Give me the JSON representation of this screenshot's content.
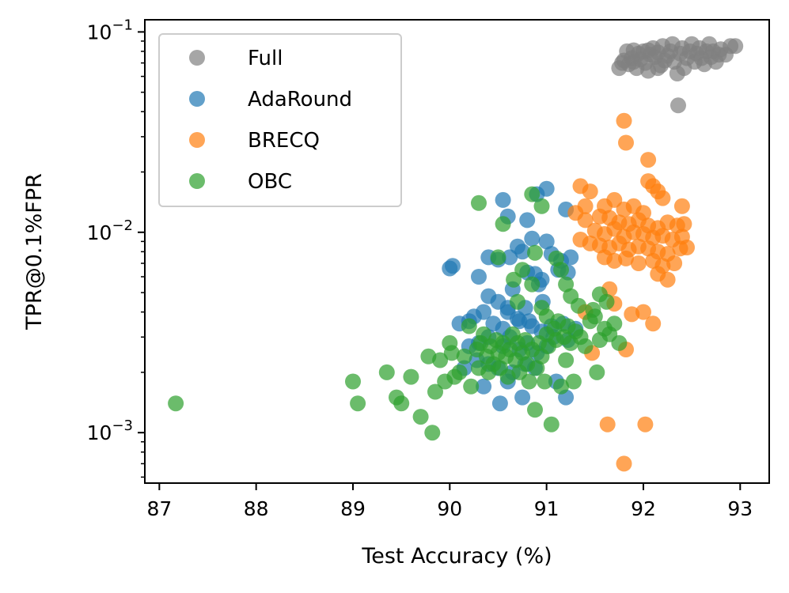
{
  "chart_data": {
    "type": "scatter",
    "title": "",
    "xlabel": "Test Accuracy (%)",
    "ylabel": "TPR@0.1%FPR",
    "xlim": [
      86.85,
      93.3
    ],
    "ylim": [
      0.00056,
      0.115
    ],
    "yscale": "log",
    "grid": false,
    "legend_position": "top-left",
    "x_ticks": [
      87,
      88,
      89,
      90,
      91,
      92,
      93
    ],
    "x_tick_labels": [
      "87",
      "88",
      "89",
      "90",
      "91",
      "92",
      "93"
    ],
    "y_ticks": [
      0.001,
      0.01,
      0.1
    ],
    "y_tick_labels": [
      {
        "base": "10",
        "exp": "−3"
      },
      {
        "base": "10",
        "exp": "−2"
      },
      {
        "base": "10",
        "exp": "−1"
      }
    ],
    "series": [
      {
        "name": "Full",
        "color": "#808080",
        "points": [
          [
            91.75,
            0.066
          ],
          [
            91.78,
            0.07
          ],
          [
            91.8,
            0.072
          ],
          [
            91.83,
            0.08
          ],
          [
            91.85,
            0.069
          ],
          [
            91.88,
            0.074
          ],
          [
            91.9,
            0.071
          ],
          [
            91.93,
            0.066
          ],
          [
            91.95,
            0.078
          ],
          [
            91.97,
            0.073
          ],
          [
            92.0,
            0.08
          ],
          [
            92.02,
            0.07
          ],
          [
            92.05,
            0.064
          ],
          [
            92.07,
            0.077
          ],
          [
            92.1,
            0.083
          ],
          [
            92.12,
            0.075
          ],
          [
            92.15,
            0.079
          ],
          [
            92.18,
            0.068
          ],
          [
            92.2,
            0.085
          ],
          [
            92.22,
            0.072
          ],
          [
            92.25,
            0.076
          ],
          [
            92.28,
            0.08
          ],
          [
            92.3,
            0.087
          ],
          [
            92.32,
            0.071
          ],
          [
            92.35,
            0.062
          ],
          [
            92.38,
            0.078
          ],
          [
            92.4,
            0.083
          ],
          [
            92.42,
            0.066
          ],
          [
            92.45,
            0.074
          ],
          [
            92.48,
            0.08
          ],
          [
            92.5,
            0.087
          ],
          [
            92.53,
            0.071
          ],
          [
            92.55,
            0.078
          ],
          [
            92.58,
            0.083
          ],
          [
            92.6,
            0.074
          ],
          [
            92.63,
            0.069
          ],
          [
            92.65,
            0.08
          ],
          [
            92.68,
            0.087
          ],
          [
            92.7,
            0.075
          ],
          [
            92.72,
            0.08
          ],
          [
            92.75,
            0.071
          ],
          [
            92.78,
            0.077
          ],
          [
            92.8,
            0.082
          ],
          [
            92.85,
            0.077
          ],
          [
            92.9,
            0.085
          ],
          [
            92.95,
            0.085
          ],
          [
            92.36,
            0.043
          ],
          [
            91.9,
            0.081
          ],
          [
            92.05,
            0.081
          ],
          [
            92.15,
            0.066
          ]
        ]
      },
      {
        "name": "AdaRound",
        "color": "#1f77b4",
        "points": [
          [
            91.0,
            0.0165
          ],
          [
            90.55,
            0.0145
          ],
          [
            90.6,
            0.012
          ],
          [
            90.9,
            0.0155
          ],
          [
            90.8,
            0.0115
          ],
          [
            91.2,
            0.013
          ],
          [
            90.0,
            0.0066
          ],
          [
            90.03,
            0.0068
          ],
          [
            90.4,
            0.0075
          ],
          [
            90.5,
            0.0073
          ],
          [
            90.7,
            0.0085
          ],
          [
            90.75,
            0.008
          ],
          [
            90.85,
            0.0093
          ],
          [
            91.0,
            0.009
          ],
          [
            91.05,
            0.0078
          ],
          [
            90.62,
            0.0075
          ],
          [
            90.8,
            0.0063
          ],
          [
            91.15,
            0.0072
          ],
          [
            91.25,
            0.0075
          ],
          [
            90.3,
            0.006
          ],
          [
            90.88,
            0.0062
          ],
          [
            90.95,
            0.0058
          ],
          [
            91.12,
            0.0065
          ],
          [
            91.22,
            0.0063
          ],
          [
            90.65,
            0.0052
          ],
          [
            90.92,
            0.0055
          ],
          [
            90.4,
            0.0048
          ],
          [
            90.5,
            0.0045
          ],
          [
            90.78,
            0.0042
          ],
          [
            90.6,
            0.004
          ],
          [
            90.35,
            0.004
          ],
          [
            90.25,
            0.0038
          ],
          [
            90.2,
            0.0036
          ],
          [
            90.1,
            0.0035
          ],
          [
            90.45,
            0.0035
          ],
          [
            90.55,
            0.0033
          ],
          [
            90.7,
            0.0037
          ],
          [
            90.82,
            0.0036
          ],
          [
            91.05,
            0.0034
          ],
          [
            91.17,
            0.0035
          ],
          [
            91.3,
            0.0033
          ],
          [
            90.4,
            0.003
          ],
          [
            90.62,
            0.003
          ],
          [
            90.8,
            0.0028
          ],
          [
            90.95,
            0.0032
          ],
          [
            91.07,
            0.003
          ],
          [
            91.22,
            0.0029
          ],
          [
            90.3,
            0.0028
          ],
          [
            90.55,
            0.0027
          ],
          [
            90.72,
            0.0026
          ],
          [
            90.9,
            0.0025
          ],
          [
            91.0,
            0.0027
          ],
          [
            90.2,
            0.0027
          ],
          [
            90.28,
            0.0023
          ],
          [
            90.4,
            0.0022
          ],
          [
            90.5,
            0.0021
          ],
          [
            90.65,
            0.002
          ],
          [
            90.78,
            0.0022
          ],
          [
            90.88,
            0.0021
          ],
          [
            90.15,
            0.0021
          ],
          [
            90.35,
            0.0017
          ],
          [
            90.6,
            0.0018
          ],
          [
            90.75,
            0.0015
          ],
          [
            90.52,
            0.0014
          ],
          [
            91.2,
            0.0015
          ],
          [
            91.1,
            0.0018
          ],
          [
            90.96,
            0.0045
          ],
          [
            90.72,
            0.0036
          ],
          [
            90.6,
            0.0042
          ],
          [
            90.85,
            0.0034
          ]
        ]
      },
      {
        "name": "BRECQ",
        "color": "#ff7f0e",
        "points": [
          [
            91.8,
            0.036
          ],
          [
            91.82,
            0.028
          ],
          [
            92.05,
            0.023
          ],
          [
            92.05,
            0.018
          ],
          [
            92.1,
            0.017
          ],
          [
            92.15,
            0.016
          ],
          [
            91.35,
            0.017
          ],
          [
            91.45,
            0.016
          ],
          [
            91.6,
            0.0135
          ],
          [
            91.7,
            0.0145
          ],
          [
            91.8,
            0.013
          ],
          [
            91.9,
            0.0135
          ],
          [
            92.0,
            0.0125
          ],
          [
            92.2,
            0.0148
          ],
          [
            92.4,
            0.0135
          ],
          [
            91.4,
            0.0115
          ],
          [
            91.55,
            0.012
          ],
          [
            91.65,
            0.0118
          ],
          [
            91.75,
            0.0112
          ],
          [
            91.85,
            0.011
          ],
          [
            91.95,
            0.0115
          ],
          [
            92.05,
            0.0108
          ],
          [
            92.15,
            0.0105
          ],
          [
            92.25,
            0.0112
          ],
          [
            92.35,
            0.0108
          ],
          [
            92.42,
            0.011
          ],
          [
            91.5,
            0.0102
          ],
          [
            91.6,
            0.0098
          ],
          [
            91.7,
            0.0104
          ],
          [
            91.8,
            0.0095
          ],
          [
            91.9,
            0.01
          ],
          [
            92.0,
            0.0098
          ],
          [
            92.1,
            0.0094
          ],
          [
            92.2,
            0.0096
          ],
          [
            92.3,
            0.0092
          ],
          [
            92.4,
            0.0095
          ],
          [
            91.35,
            0.0092
          ],
          [
            91.45,
            0.0088
          ],
          [
            91.55,
            0.0086
          ],
          [
            91.65,
            0.0084
          ],
          [
            91.75,
            0.0088
          ],
          [
            91.85,
            0.0082
          ],
          [
            91.95,
            0.0085
          ],
          [
            92.05,
            0.0083
          ],
          [
            92.15,
            0.008
          ],
          [
            92.25,
            0.0078
          ],
          [
            92.38,
            0.0083
          ],
          [
            91.6,
            0.0075
          ],
          [
            91.7,
            0.0072
          ],
          [
            91.82,
            0.0074
          ],
          [
            91.95,
            0.007
          ],
          [
            92.1,
            0.0072
          ],
          [
            92.2,
            0.0068
          ],
          [
            92.32,
            0.007
          ],
          [
            92.45,
            0.0084
          ],
          [
            92.15,
            0.0062
          ],
          [
            92.25,
            0.0058
          ],
          [
            91.65,
            0.0052
          ],
          [
            91.7,
            0.0044
          ],
          [
            91.4,
            0.004
          ],
          [
            91.88,
            0.0039
          ],
          [
            92.0,
            0.004
          ],
          [
            92.1,
            0.0035
          ],
          [
            91.47,
            0.0025
          ],
          [
            91.82,
            0.0026
          ],
          [
            91.63,
            0.0011
          ],
          [
            92.02,
            0.0011
          ],
          [
            91.8,
            0.0007
          ],
          [
            91.4,
            0.0135
          ],
          [
            91.3,
            0.0125
          ]
        ]
      },
      {
        "name": "OBC",
        "color": "#2ca02c",
        "points": [
          [
            87.17,
            0.0014
          ],
          [
            89.0,
            0.0018
          ],
          [
            89.05,
            0.0014
          ],
          [
            89.35,
            0.002
          ],
          [
            89.45,
            0.0015
          ],
          [
            89.5,
            0.0014
          ],
          [
            89.6,
            0.0019
          ],
          [
            89.7,
            0.0012
          ],
          [
            89.78,
            0.0024
          ],
          [
            89.82,
            0.001
          ],
          [
            89.85,
            0.0016
          ],
          [
            89.9,
            0.0023
          ],
          [
            89.95,
            0.0018
          ],
          [
            90.0,
            0.0028
          ],
          [
            90.02,
            0.0025
          ],
          [
            90.05,
            0.0019
          ],
          [
            90.1,
            0.002
          ],
          [
            90.15,
            0.0024
          ],
          [
            90.2,
            0.0034
          ],
          [
            90.22,
            0.0017
          ],
          [
            90.28,
            0.0026
          ],
          [
            90.3,
            0.0021
          ],
          [
            90.32,
            0.0028
          ],
          [
            90.35,
            0.0031
          ],
          [
            90.38,
            0.0024
          ],
          [
            90.4,
            0.002
          ],
          [
            90.42,
            0.0027
          ],
          [
            90.45,
            0.0022
          ],
          [
            90.48,
            0.0029
          ],
          [
            90.5,
            0.0025
          ],
          [
            90.52,
            0.0021
          ],
          [
            90.55,
            0.0028
          ],
          [
            90.58,
            0.0024
          ],
          [
            90.6,
            0.0019
          ],
          [
            90.62,
            0.0026
          ],
          [
            90.65,
            0.0031
          ],
          [
            90.68,
            0.0023
          ],
          [
            90.7,
            0.0028
          ],
          [
            90.72,
            0.002
          ],
          [
            90.75,
            0.0025
          ],
          [
            90.78,
            0.0029
          ],
          [
            90.8,
            0.0022
          ],
          [
            90.82,
            0.0018
          ],
          [
            90.85,
            0.0026
          ],
          [
            90.88,
            0.0013
          ],
          [
            90.9,
            0.0021
          ],
          [
            90.92,
            0.0028
          ],
          [
            90.95,
            0.0024
          ],
          [
            90.98,
            0.0018
          ],
          [
            91.0,
            0.0031
          ],
          [
            91.02,
            0.0027
          ],
          [
            91.05,
            0.0011
          ],
          [
            91.08,
            0.0033
          ],
          [
            91.1,
            0.0029
          ],
          [
            91.12,
            0.0036
          ],
          [
            91.15,
            0.0017
          ],
          [
            91.18,
            0.003
          ],
          [
            91.2,
            0.0023
          ],
          [
            91.22,
            0.0034
          ],
          [
            91.25,
            0.0028
          ],
          [
            91.28,
            0.0018
          ],
          [
            91.3,
            0.0032
          ],
          [
            91.35,
            0.003
          ],
          [
            91.4,
            0.0027
          ],
          [
            91.45,
            0.0036
          ],
          [
            91.5,
            0.0038
          ],
          [
            91.52,
            0.002
          ],
          [
            91.55,
            0.0029
          ],
          [
            91.6,
            0.0033
          ],
          [
            91.65,
            0.0031
          ],
          [
            91.7,
            0.0035
          ],
          [
            91.75,
            0.0028
          ],
          [
            90.3,
            0.014
          ],
          [
            90.55,
            0.011
          ],
          [
            90.85,
            0.0155
          ],
          [
            90.95,
            0.0135
          ],
          [
            90.5,
            0.0075
          ],
          [
            90.75,
            0.0065
          ],
          [
            90.85,
            0.0055
          ],
          [
            91.1,
            0.0074
          ],
          [
            91.15,
            0.0065
          ],
          [
            91.2,
            0.0055
          ],
          [
            91.25,
            0.0048
          ],
          [
            90.7,
            0.0045
          ],
          [
            90.95,
            0.0042
          ],
          [
            91.0,
            0.0038
          ],
          [
            91.55,
            0.0049
          ],
          [
            91.62,
            0.0045
          ],
          [
            91.48,
            0.0041
          ],
          [
            91.33,
            0.0043
          ],
          [
            90.88,
            0.0079
          ],
          [
            90.66,
            0.0058
          ]
        ]
      }
    ]
  }
}
